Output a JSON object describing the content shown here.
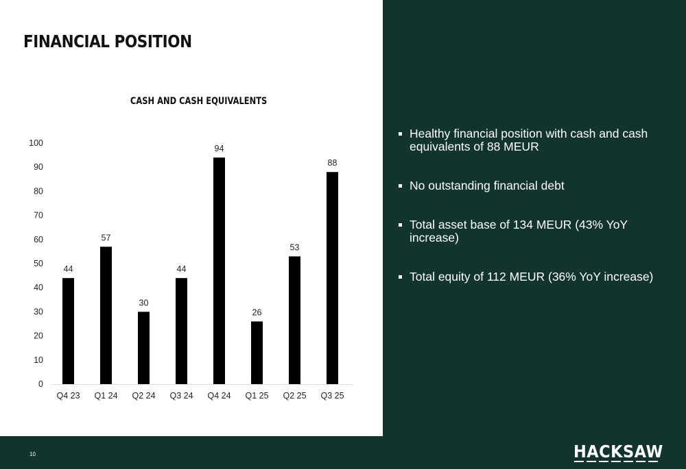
{
  "slide": {
    "title": "FINANCIAL POSITION",
    "page_number": "10",
    "logo_text": "HACKSAW"
  },
  "bullets": [
    "Healthy financial position with cash and cash equivalents of 88 MEUR",
    "No outstanding financial debt",
    "Total asset base of 134 MEUR (43% YoY increase)",
    "Total equity of 112 MEUR (36% YoY increase)"
  ],
  "colors": {
    "panel": "#11342d",
    "bar": "#000000",
    "text": "#111111",
    "bullet_text": "#ffffff"
  },
  "chart_data": {
    "type": "bar",
    "title": "CASH AND CASH EQUIVALENTS",
    "categories": [
      "Q4 23",
      "Q1 24",
      "Q2 24",
      "Q3 24",
      "Q4 24",
      "Q1 25",
      "Q2 25",
      "Q3 25"
    ],
    "values": [
      44,
      57,
      30,
      44,
      94,
      26,
      53,
      88
    ],
    "ylim": [
      0,
      100
    ],
    "yticks": [
      0,
      10,
      20,
      30,
      40,
      50,
      60,
      70,
      80,
      90,
      100
    ],
    "xlabel": "",
    "ylabel": "",
    "grid": false,
    "legend": false,
    "data_labels": true
  }
}
